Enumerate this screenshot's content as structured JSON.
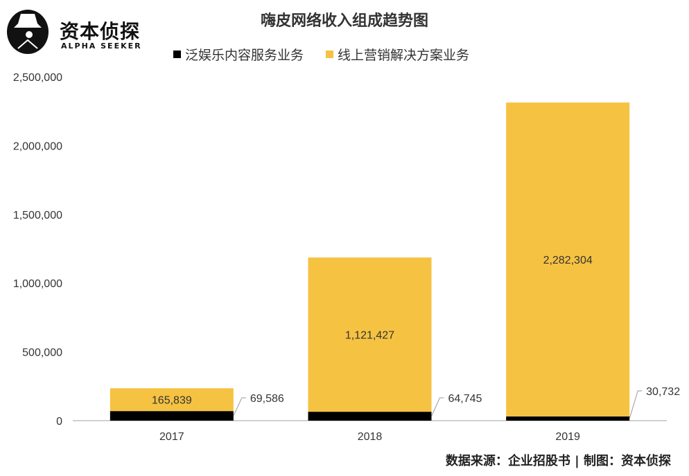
{
  "logo": {
    "name": "资本侦探",
    "subtitle": "ALPHA SEEKER"
  },
  "source": "数据来源：企业招股书 | 制图：资本侦探",
  "colors": {
    "black_series": "#000000",
    "yellow_series": "#F5C242",
    "axis": "#BFBFBF",
    "text": "#333333"
  },
  "chart_data": {
    "type": "bar",
    "stacked": true,
    "title": "嗨皮网络收入组成趋势图",
    "categories": [
      "2017",
      "2018",
      "2019"
    ],
    "series": [
      {
        "name": "泛娱乐内容服务业务",
        "values": [
          69586,
          64745,
          30732
        ],
        "labels": [
          "69,586",
          "64,745",
          "30,732"
        ]
      },
      {
        "name": "线上营销解决方案业务",
        "values": [
          165839,
          1121427,
          2282304
        ],
        "labels": [
          "165,839",
          "1,121,427",
          "2,282,304"
        ]
      }
    ],
    "ylim": [
      0,
      2500000
    ],
    "yticks": [
      "0",
      "500,000",
      "1,000,000",
      "1,500,000",
      "2,000,000",
      "2,500,000"
    ],
    "grid": false,
    "legend_position": "top"
  }
}
